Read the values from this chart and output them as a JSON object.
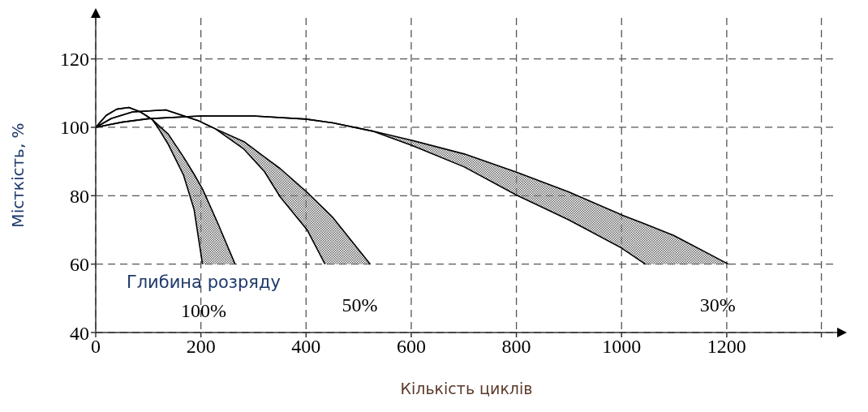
{
  "chart_data": {
    "type": "line",
    "xlabel": "Кількість циклів",
    "ylabel": "Місткість, %",
    "xlim": [
      0,
      1410
    ],
    "ylim": [
      40,
      132
    ],
    "xticks": [
      0,
      200,
      400,
      600,
      800,
      1000,
      1200,
      {
        "value": 1380,
        "label": null
      }
    ],
    "yticks": [
      40,
      60,
      80,
      100,
      120
    ],
    "grid": true,
    "marker": "none",
    "line_style": "solid",
    "series": [
      {
        "color": "#000000",
        "x": [
          0,
          20,
          40,
          63,
          85,
          97,
          108,
          120,
          138,
          167,
          187,
          203,
          232,
          265
        ],
        "values": [
          100,
          103.5,
          105.3,
          105.8,
          104.5,
          103.3,
          102.2,
          100.5,
          98,
          91.3,
          86.3,
          82,
          72,
          60
        ],
        "lower": [
          100,
          103.5,
          105.3,
          105.8,
          104.5,
          103.3,
          102.2,
          99.5,
          95,
          86,
          76,
          60,
          60,
          60
        ],
        "upper": [
          100,
          103.5,
          105.3,
          105.8,
          104.5,
          103.3,
          102.2,
          100.5,
          98,
          91.3,
          86.3,
          82,
          72,
          60
        ]
      },
      {
        "color": "#000000",
        "x": [
          0,
          20,
          40,
          63,
          85,
          97,
          108,
          120,
          138,
          167,
          187,
          203
        ],
        "values": [
          100,
          103.5,
          105.3,
          105.8,
          104.5,
          103.3,
          102.2,
          99.5,
          95,
          86,
          76,
          60
        ]
      },
      {
        "color": "#000000",
        "x": [
          0,
          30,
          70,
          133,
          197,
          227,
          282,
          321,
          351,
          402,
          436,
          451,
          522
        ],
        "values": [
          100,
          102.6,
          104.5,
          105.1,
          101.8,
          99.6,
          95.8,
          91.3,
          87.9,
          81,
          75.9,
          73.6,
          60
        ],
        "lower": [
          100,
          102.6,
          104.5,
          105.1,
          101.8,
          99.6,
          93.6,
          87,
          79.6,
          70,
          60,
          60,
          60
        ],
        "upper": [
          100,
          102.6,
          104.5,
          105.1,
          101.8,
          99.6,
          95.8,
          91.3,
          87.9,
          81,
          75.9,
          73.6,
          60
        ]
      },
      {
        "color": "#000000",
        "x": [
          0,
          30,
          70,
          133,
          197,
          227,
          282,
          321,
          351,
          402,
          436
        ],
        "values": [
          100,
          102.6,
          104.5,
          105.1,
          101.8,
          99.6,
          93.6,
          87,
          79.6,
          70,
          60
        ]
      },
      {
        "color": "#000000",
        "x": [
          0,
          50,
          100,
          200,
          300,
          400,
          451,
          526,
          601,
          701,
          800,
          900,
          1000,
          1045,
          1099,
          1203
        ],
        "values": [
          100,
          101.5,
          102.5,
          103.3,
          103.3,
          102.4,
          101.3,
          98.9,
          96.2,
          92.2,
          86.9,
          81.1,
          74.4,
          71.7,
          68.4,
          60
        ],
        "lower": [
          100,
          101.5,
          102.5,
          103.3,
          103.3,
          102.4,
          101.3,
          98.9,
          94.7,
          88.4,
          80.2,
          72.9,
          64.7,
          60,
          60,
          60
        ],
        "upper": [
          100,
          101.5,
          102.5,
          103.3,
          103.3,
          102.4,
          101.3,
          98.9,
          96.2,
          92.2,
          86.9,
          81.1,
          74.4,
          71.7,
          68.4,
          60
        ]
      },
      {
        "color": "#000000",
        "x": [
          0,
          50,
          100,
          200,
          300,
          400,
          451,
          526,
          601,
          701,
          800,
          900,
          1000,
          1045
        ],
        "values": [
          100,
          101.5,
          102.5,
          103.3,
          103.3,
          102.4,
          101.3,
          98.9,
          94.7,
          88.4,
          80.2,
          72.9,
          64.7,
          60
        ]
      }
    ],
    "annotations": [
      "Глибина розряду",
      "100%",
      "50%",
      "30%"
    ]
  }
}
